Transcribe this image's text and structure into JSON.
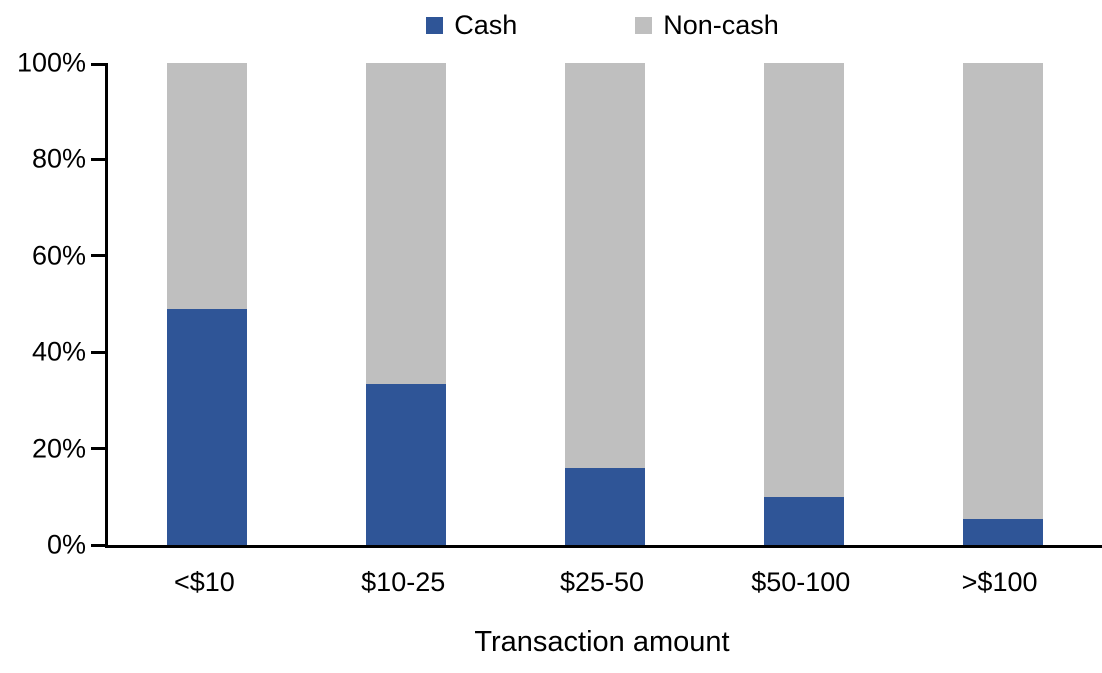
{
  "legend": {
    "items": [
      {
        "label": "Cash",
        "color": "#2F5597"
      },
      {
        "label": "Non-cash",
        "color": "#BFBFBF"
      }
    ]
  },
  "axis": {
    "x_title": "Transaction amount",
    "y_tick_labels": [
      "0%",
      "20%",
      "40%",
      "60%",
      "80%",
      "100%"
    ]
  },
  "chart_data": {
    "type": "bar",
    "stacked": true,
    "categories": [
      "<$10",
      "$10-25",
      "$25-50",
      "$50-100",
      ">$100"
    ],
    "series": [
      {
        "name": "Cash",
        "color": "#2F5597",
        "values": [
          49,
          33.5,
          16,
          10,
          5.5
        ]
      },
      {
        "name": "Non-cash",
        "color": "#BFBFBF",
        "values": [
          51,
          66.5,
          84,
          90,
          94.5
        ]
      }
    ],
    "title": "",
    "xlabel": "Transaction amount",
    "ylabel": "",
    "ylim": [
      0,
      100
    ],
    "ytick_step": 20,
    "grid": false,
    "legend_position": "top"
  }
}
